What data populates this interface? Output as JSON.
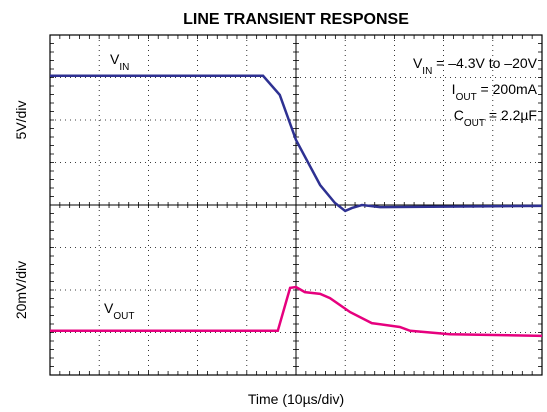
{
  "chart_data": {
    "type": "line",
    "title": "LINE TRANSIENT RESPONSE",
    "xlabel": "Time (10µs/div)",
    "ylabels": [
      "5V/div",
      "20mV/div"
    ],
    "xlim": [
      0,
      10
    ],
    "ylim": [
      0,
      8
    ],
    "xticks": [
      0,
      1,
      2,
      3,
      4,
      5,
      6,
      7,
      8,
      9,
      10
    ],
    "yticks": [
      0,
      1,
      2,
      3,
      4,
      5,
      6,
      7,
      8
    ],
    "grid": true,
    "annotations": [
      {
        "main": "V",
        "sub": "IN",
        "rest": " = –4.3V to –20V"
      },
      {
        "main": "I",
        "sub": "OUT",
        "rest": " = 200mA"
      },
      {
        "main": "C",
        "sub": "OUT",
        "rest": " = 2.2µF"
      }
    ],
    "series": [
      {
        "name": "V",
        "name_sub": "IN",
        "color": "#2e3192",
        "x": [
          0,
          4.33,
          4.67,
          5.0,
          5.49,
          5.79,
          6.0,
          6.14,
          6.34,
          6.71,
          10
        ],
        "values": [
          7.04,
          7.04,
          6.59,
          5.53,
          4.47,
          4.05,
          3.86,
          3.93,
          4.0,
          3.95,
          3.98
        ]
      },
      {
        "name": "V",
        "name_sub": "OUT",
        "color": "#e6007e",
        "x": [
          0,
          4.63,
          4.88,
          5.0,
          5.18,
          5.49,
          5.69,
          6.1,
          6.54,
          7.11,
          7.32,
          8.13,
          10
        ],
        "values": [
          1.04,
          1.04,
          2.05,
          2.07,
          1.95,
          1.91,
          1.81,
          1.48,
          1.22,
          1.13,
          1.04,
          0.96,
          0.92
        ]
      }
    ]
  }
}
